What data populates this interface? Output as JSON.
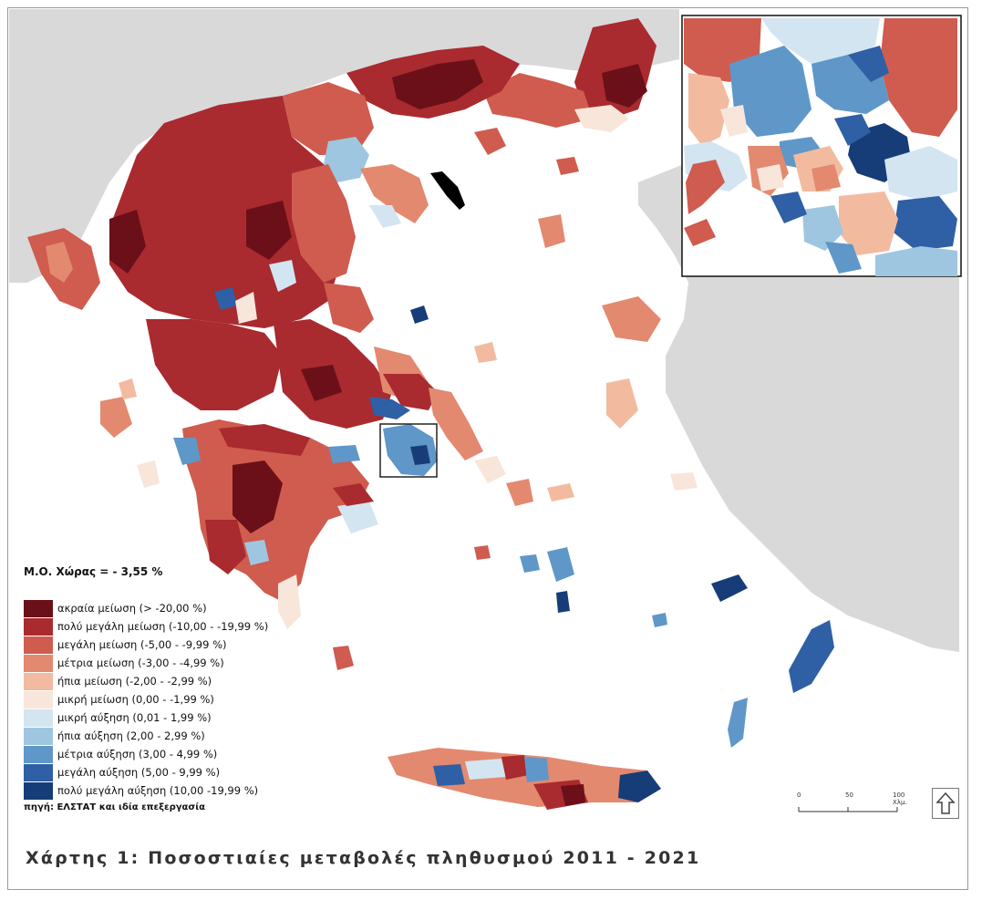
{
  "title": "Χάρτης 1: Ποσοστιαίες μεταβολές πληθυσμού 2011 - 2021",
  "country_average": "Μ.Ο. Χώρας = - 3,55 %",
  "source": "πηγή: ΕΛΣΤΑΤ και ιδία επεξεργασία",
  "legend": [
    {
      "label": "ακραία μείωση (> -20,00 %)",
      "color": "#6b1018"
    },
    {
      "label": "πολύ μεγάλη μείωση (-10,00 - -19,99 %)",
      "color": "#a92a2f"
    },
    {
      "label": "μεγάλη μείωση (-5,00 - -9,99 %)",
      "color": "#cf5c4e"
    },
    {
      "label": "μέτρια μείωση (-3,00 - -4,99 %)",
      "color": "#e3896f"
    },
    {
      "label": "ήπια μείωση (-2,00 - -2,99 %)",
      "color": "#f2bba0"
    },
    {
      "label": "μικρή μείωση (0,00 - -1,99 %)",
      "color": "#f8e6da"
    },
    {
      "label": "μικρή αύξηση (0,01 - 1,99 %)",
      "color": "#d3e5f1"
    },
    {
      "label": "ήπια αύξηση (2,00 - 2,99 %)",
      "color": "#9fc6e1"
    },
    {
      "label": "μέτρια αύξηση (3,00 - 4,99 %)",
      "color": "#5f97c9"
    },
    {
      "label": "μεγάλη αύξηση (5,00 - 9,99 %)",
      "color": "#2f5fa5"
    },
    {
      "label": "πολύ μεγάλη αύξηση (10,00 -19,99 %)",
      "color": "#163d78"
    }
  ],
  "scale_bar": {
    "ticks": [
      "0",
      "50",
      "100 Χλμ."
    ]
  },
  "colors": {
    "neighbor_land": "#d9d9d9",
    "sea": "#ffffff"
  }
}
